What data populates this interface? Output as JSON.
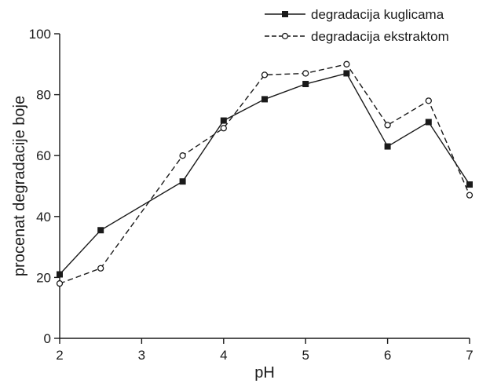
{
  "chart_data": {
    "type": "line",
    "xlabel": "pH",
    "ylabel": "procenat degradacije boje",
    "xlim": [
      2,
      7
    ],
    "ylim": [
      0,
      100
    ],
    "x_ticks": [
      2,
      3,
      4,
      5,
      6,
      7
    ],
    "y_ticks": [
      0,
      20,
      40,
      60,
      80,
      100
    ],
    "grid": false,
    "legend_position": "top-right",
    "series": [
      {
        "name": "degradacija kuglicama",
        "line_style": "solid",
        "marker": "filled-square",
        "color": "#1a1a1a",
        "x": [
          2,
          2.5,
          3.5,
          4,
          4.5,
          5,
          5.5,
          6,
          6.5,
          7
        ],
        "y": [
          21,
          35.5,
          51.5,
          71.5,
          78.5,
          83.5,
          87,
          63,
          71,
          50.5
        ]
      },
      {
        "name": "degradacija ekstraktom",
        "line_style": "dashed",
        "marker": "open-circle",
        "color": "#1a1a1a",
        "x": [
          2,
          2.5,
          3.5,
          4,
          4.5,
          5,
          5.5,
          6,
          6.5,
          7
        ],
        "y": [
          18,
          23,
          60,
          69,
          86.5,
          87,
          90,
          70,
          78,
          47
        ]
      }
    ]
  }
}
